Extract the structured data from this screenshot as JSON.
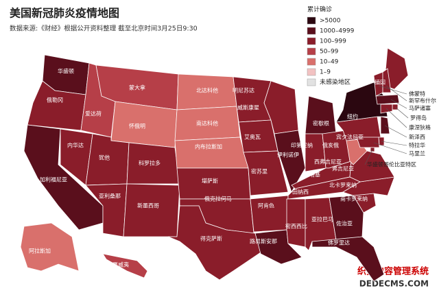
{
  "title": "美国新冠肺炎疫情地图",
  "subtitle": "数据来源:《财经》根据公开资料整理  截至北京时间3月25日9:30",
  "legend": {
    "title": "累计确诊",
    "items": [
      {
        "label": ">5000",
        "color": "#2b0710"
      },
      {
        "label": "1000–4999",
        "color": "#5a0f1c"
      },
      {
        "label": "100–999",
        "color": "#8a1d2a"
      },
      {
        "label": "50–99",
        "color": "#b63f48"
      },
      {
        "label": "10–49",
        "color": "#d9706c"
      },
      {
        "label": "1–9",
        "color": "#f2c2c2"
      },
      {
        "label": "未感染地区",
        "color": "#e2e2e2"
      }
    ]
  },
  "states": [
    {
      "label": "华盛顿",
      "class": 1
    },
    {
      "label": "俄勒冈",
      "class": 2
    },
    {
      "label": "加利福尼亚",
      "class": 1
    },
    {
      "label": "内华达",
      "class": 2
    },
    {
      "label": "爱达荷",
      "class": 3
    },
    {
      "label": "蒙大拿",
      "class": 3
    },
    {
      "label": "怀俄明",
      "class": 4
    },
    {
      "label": "犹他",
      "class": 2
    },
    {
      "label": "亚利桑那",
      "class": 2
    },
    {
      "label": "科罗拉多",
      "class": 2
    },
    {
      "label": "新墨西哥",
      "class": 2
    },
    {
      "label": "北达科他",
      "class": 4
    },
    {
      "label": "南达科他",
      "class": 4
    },
    {
      "label": "内布拉斯加",
      "class": 4
    },
    {
      "label": "堪萨斯",
      "class": 2
    },
    {
      "label": "俄克拉何马",
      "class": 2
    },
    {
      "label": "得克萨斯",
      "class": 2
    },
    {
      "label": "明尼苏达",
      "class": 2
    },
    {
      "label": "艾奥瓦",
      "class": 2
    },
    {
      "label": "密苏里",
      "class": 2
    },
    {
      "label": "阿肯色",
      "class": 2
    },
    {
      "label": "路易斯安那",
      "class": 1
    },
    {
      "label": "威斯康星",
      "class": 2
    },
    {
      "label": "伊利诺伊",
      "class": 1
    },
    {
      "label": "密歇根",
      "class": 1
    },
    {
      "label": "印第安纳",
      "class": 2
    },
    {
      "label": "俄亥俄",
      "class": 2
    },
    {
      "label": "肯塔基",
      "class": 2
    },
    {
      "label": "田纳西",
      "class": 2
    },
    {
      "label": "密西西比",
      "class": 2
    },
    {
      "label": "亚拉巴马",
      "class": 2
    },
    {
      "label": "佐治亚",
      "class": 1
    },
    {
      "label": "佛罗里达",
      "class": 1
    },
    {
      "label": "南卡罗来纳",
      "class": 2
    },
    {
      "label": "北卡罗来纳",
      "class": 2
    },
    {
      "label": "弗吉尼亚",
      "class": 2
    },
    {
      "label": "西弗吉尼亚",
      "class": 4
    },
    {
      "label": "宾夕法尼亚",
      "class": 2
    },
    {
      "label": "纽约",
      "class": 0
    },
    {
      "label": "缅因",
      "class": 2
    },
    {
      "label": "佛蒙特",
      "class": 2
    },
    {
      "label": "新罕布什尔",
      "class": 2
    },
    {
      "label": "马萨诸塞",
      "class": 1
    },
    {
      "label": "罗得岛",
      "class": 2
    },
    {
      "label": "康涅狄格",
      "class": 2
    },
    {
      "label": "新泽西",
      "class": 1
    },
    {
      "label": "特拉华",
      "class": 2
    },
    {
      "label": "马里兰",
      "class": 2
    },
    {
      "label": "华盛顿哥伦比亚特区",
      "class": 2
    },
    {
      "label": "阿拉斯加",
      "class": 4
    },
    {
      "label": "夏威夷",
      "class": 3
    }
  ],
  "watermark": [
    "织梦内容管理系统",
    "DEDECMS.COM"
  ]
}
